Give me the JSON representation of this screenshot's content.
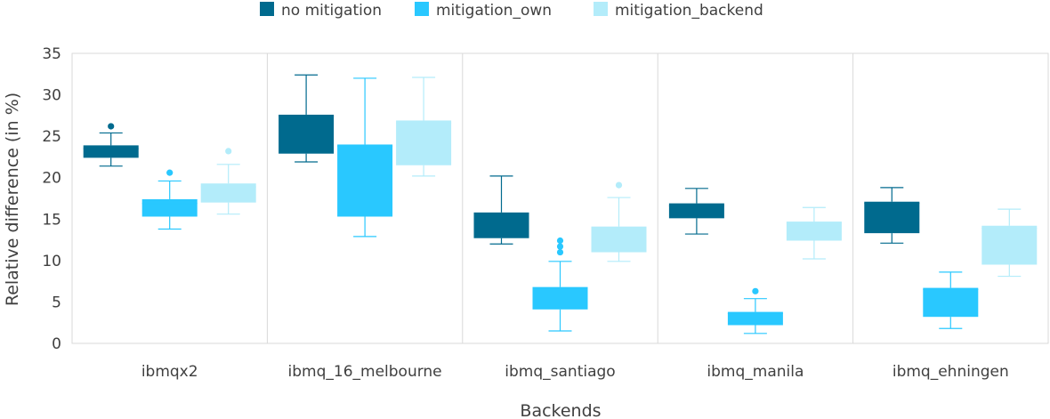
{
  "chart_data": {
    "type": "boxplot",
    "xlabel": "Backends",
    "ylabel": "Relative difference (in %)",
    "ylim": [
      0,
      35
    ],
    "yticks": [
      0,
      5,
      10,
      15,
      20,
      25,
      30,
      35
    ],
    "grid": "vertical separators between categories",
    "legend_position": "top",
    "categories": [
      "ibmqx2",
      "ibmq_16_melbourne",
      "ibmq_santiago",
      "ibmq_manila",
      "ibmq_ehningen"
    ],
    "series": [
      {
        "name": "no mitigation",
        "color": "#006a8e",
        "boxes": [
          {
            "min": 21.4,
            "q1": 22.4,
            "median": 23.5,
            "q3": 23.9,
            "max": 25.4,
            "outliers": [
              26.2
            ]
          },
          {
            "min": 21.9,
            "q1": 22.9,
            "median": 27.4,
            "q3": 27.6,
            "max": 32.4,
            "outliers": []
          },
          {
            "min": 12.0,
            "q1": 12.7,
            "median": 15.6,
            "q3": 15.8,
            "max": 20.2,
            "outliers": []
          },
          {
            "min": 13.2,
            "q1": 15.1,
            "median": 16.6,
            "q3": 16.9,
            "max": 18.7,
            "outliers": []
          },
          {
            "min": 12.1,
            "q1": 13.3,
            "median": 16.9,
            "q3": 17.1,
            "max": 18.8,
            "outliers": []
          }
        ]
      },
      {
        "name": "mitigation_own",
        "color": "#29c8ff",
        "boxes": [
          {
            "min": 13.8,
            "q1": 15.3,
            "median": 16.9,
            "q3": 17.4,
            "max": 19.6,
            "outliers": [
              20.6
            ]
          },
          {
            "min": 12.9,
            "q1": 15.3,
            "median": 23.8,
            "q3": 24.0,
            "max": 32.0,
            "outliers": []
          },
          {
            "min": 1.5,
            "q1": 4.1,
            "median": 6.5,
            "q3": 6.8,
            "max": 9.9,
            "outliers": [
              11.0,
              11.7,
              12.4
            ]
          },
          {
            "min": 1.2,
            "q1": 2.2,
            "median": 3.6,
            "q3": 3.8,
            "max": 5.4,
            "outliers": [
              6.3
            ]
          },
          {
            "min": 1.8,
            "q1": 3.2,
            "median": 6.5,
            "q3": 6.7,
            "max": 8.6,
            "outliers": []
          }
        ]
      },
      {
        "name": "mitigation_backend",
        "color": "#b3ecfa",
        "boxes": [
          {
            "min": 15.6,
            "q1": 17.0,
            "median": 18.9,
            "q3": 19.3,
            "max": 21.6,
            "outliers": [
              23.2
            ]
          },
          {
            "min": 20.2,
            "q1": 21.5,
            "median": 26.6,
            "q3": 26.9,
            "max": 32.1,
            "outliers": []
          },
          {
            "min": 9.9,
            "q1": 11.0,
            "median": 13.9,
            "q3": 14.1,
            "max": 17.6,
            "outliers": [
              19.1
            ]
          },
          {
            "min": 10.2,
            "q1": 12.4,
            "median": 14.5,
            "q3": 14.7,
            "max": 16.4,
            "outliers": []
          },
          {
            "min": 8.1,
            "q1": 9.5,
            "median": 13.9,
            "q3": 14.2,
            "max": 16.2,
            "outliers": []
          }
        ]
      }
    ]
  }
}
